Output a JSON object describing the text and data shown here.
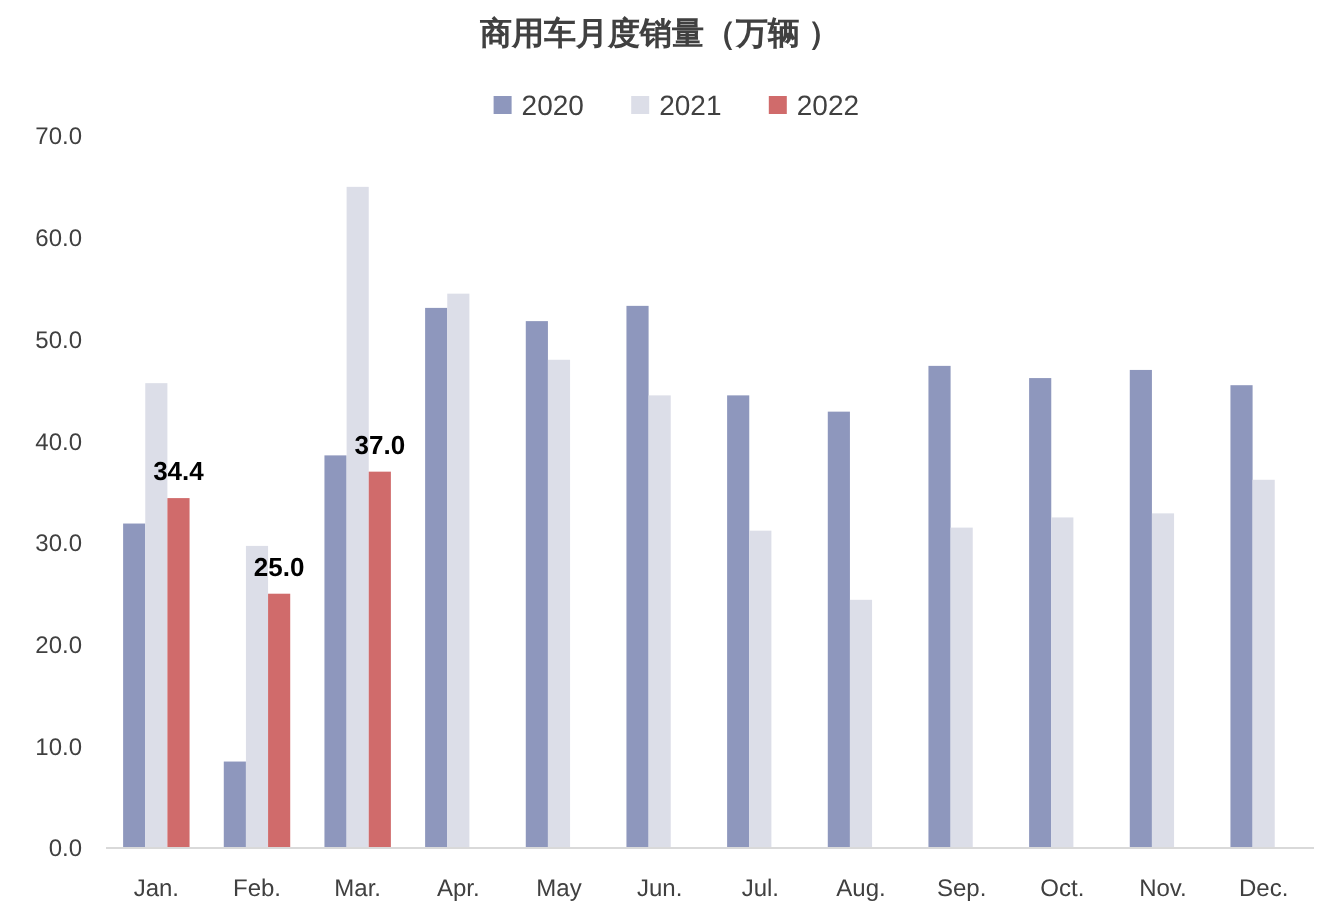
{
  "chart_data": {
    "type": "bar",
    "title": "商用车月度销量（万辆 ）",
    "categories": [
      "Jan.",
      "Feb.",
      "Mar.",
      "Apr.",
      "May",
      "Jun.",
      "Jul.",
      "Aug.",
      "Sep.",
      "Oct.",
      "Nov.",
      "Dec."
    ],
    "series": [
      {
        "name": "2020",
        "color": "#8e97bd",
        "values": [
          31.9,
          8.5,
          38.6,
          53.1,
          51.8,
          53.3,
          44.5,
          42.9,
          47.4,
          46.2,
          47.0,
          45.5
        ]
      },
      {
        "name": "2021",
        "color": "#dcdee8",
        "values": [
          45.7,
          29.7,
          65.0,
          54.5,
          48.0,
          44.5,
          31.2,
          24.4,
          31.5,
          32.5,
          32.9,
          36.2
        ]
      },
      {
        "name": "2022",
        "color": "#d06b6b",
        "values": [
          34.4,
          25.0,
          37.0,
          null,
          null,
          null,
          null,
          null,
          null,
          null,
          null,
          null
        ],
        "value_labels": [
          "34.4",
          "25.0",
          "37.0",
          null,
          null,
          null,
          null,
          null,
          null,
          null,
          null,
          null
        ]
      }
    ],
    "ylim": [
      0,
      70
    ],
    "yticks": [
      {
        "value": 0,
        "label": "0.0"
      },
      {
        "value": 10,
        "label": "10.0"
      },
      {
        "value": 20,
        "label": "20.0"
      },
      {
        "value": 30,
        "label": "30.0"
      },
      {
        "value": 40,
        "label": "40.0"
      },
      {
        "value": 50,
        "label": "50.0"
      },
      {
        "value": 60,
        "label": "60.0"
      },
      {
        "value": 70,
        "label": "70.0"
      }
    ],
    "legend": "top"
  }
}
